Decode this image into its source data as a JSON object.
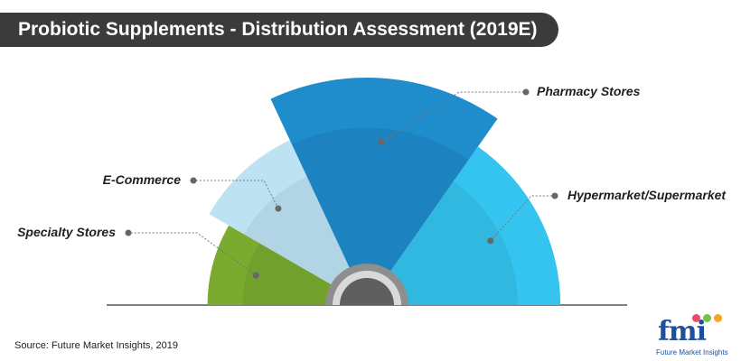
{
  "title": "Probiotic Supplements - Distribution Assessment (2019E)",
  "source": "Source: Future Market Insights, 2019",
  "logo": {
    "mark": "fmi",
    "text": "Future Market Insights"
  },
  "colors": {
    "title_bar": "#3b3b3b",
    "specialty_stores": "#7aab2f",
    "e_commerce": "#bde3f3",
    "pharmacy_stores": "#1f8ccc",
    "hypermarket": "#35c4f0",
    "hub": "#8e8e8e"
  },
  "chart_data": {
    "type": "pie",
    "subtype": "semicircular radial segments",
    "title": "Probiotic Supplements - Distribution Assessment (2019E)",
    "categories": [
      "Specialty Stores",
      "E-Commerce",
      "Pharmacy Stores",
      "Hypermarket/Supermarket"
    ],
    "angle_span_deg": [
      30,
      35,
      60,
      55
    ],
    "relative_radius": [
      0.7,
      0.8,
      1.0,
      0.85
    ],
    "legend": "callout labels with dotted leaders"
  }
}
